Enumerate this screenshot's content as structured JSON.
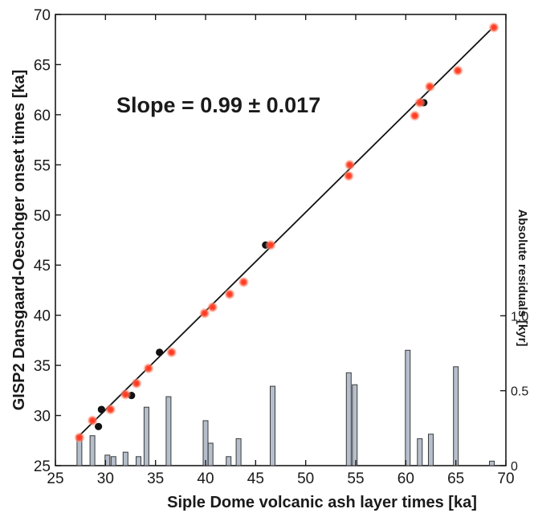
{
  "chart_data": {
    "type": "scatter",
    "xlabel": "Siple Dome volcanic ash layer times [ka]",
    "ylabel": "GISP2 Dansgaard-Oeschger onset times [ka]",
    "y2label": "Absolute residuals [kyr]",
    "annotation": "Slope = 0.99 ± 0.017",
    "xlim": [
      25,
      70
    ],
    "ylim": [
      25,
      70
    ],
    "y2lim": [
      0,
      1.5
    ],
    "x_ticks": [
      25,
      30,
      35,
      40,
      45,
      50,
      55,
      60,
      65,
      70
    ],
    "y_ticks": [
      25,
      30,
      35,
      40,
      45,
      50,
      55,
      60,
      65,
      70
    ],
    "y2_ticks": [
      0,
      0.5,
      1.0
    ],
    "y2_tick_labels": [
      "0",
      "0.5",
      "1.0"
    ],
    "grid": false,
    "fit_line": {
      "x": [
        27.3,
        68.5
      ],
      "y": [
        27.9,
        68.5
      ]
    },
    "series": [
      {
        "marker": "filled circle",
        "color": "#111111",
        "x": [
          29.6,
          29.3,
          32.6,
          35.4,
          46.0,
          61.8
        ],
        "y": [
          30.6,
          28.9,
          32.0,
          36.3,
          47.0,
          61.2
        ]
      },
      {
        "marker": "glowing circle",
        "color": "#ff3b2a",
        "x": [
          27.4,
          28.7,
          30.5,
          32.0,
          33.1,
          34.3,
          36.6,
          39.9,
          40.7,
          42.4,
          43.8,
          46.5,
          54.3,
          54.4,
          60.9,
          61.4,
          62.4,
          65.2,
          68.8
        ],
        "y": [
          27.8,
          29.5,
          30.6,
          32.1,
          33.2,
          34.7,
          36.3,
          40.2,
          40.8,
          42.1,
          43.3,
          47.0,
          53.9,
          55.0,
          59.9,
          61.2,
          62.8,
          64.4,
          68.7
        ]
      },
      {
        "type": "bar",
        "axis": "right",
        "color": "#b5bfcc",
        "x": [
          27.4,
          28.7,
          30.2,
          30.8,
          32.0,
          33.3,
          34.1,
          36.3,
          40.0,
          40.5,
          42.3,
          43.3,
          46.7,
          54.3,
          54.9,
          60.2,
          61.4,
          62.5,
          65.0,
          68.6
        ],
        "values": [
          0.2,
          0.2,
          0.07,
          0.06,
          0.09,
          0.06,
          0.39,
          0.46,
          0.3,
          0.15,
          0.06,
          0.18,
          0.53,
          0.62,
          0.54,
          0.77,
          0.18,
          0.21,
          0.66,
          0.03
        ]
      }
    ]
  }
}
